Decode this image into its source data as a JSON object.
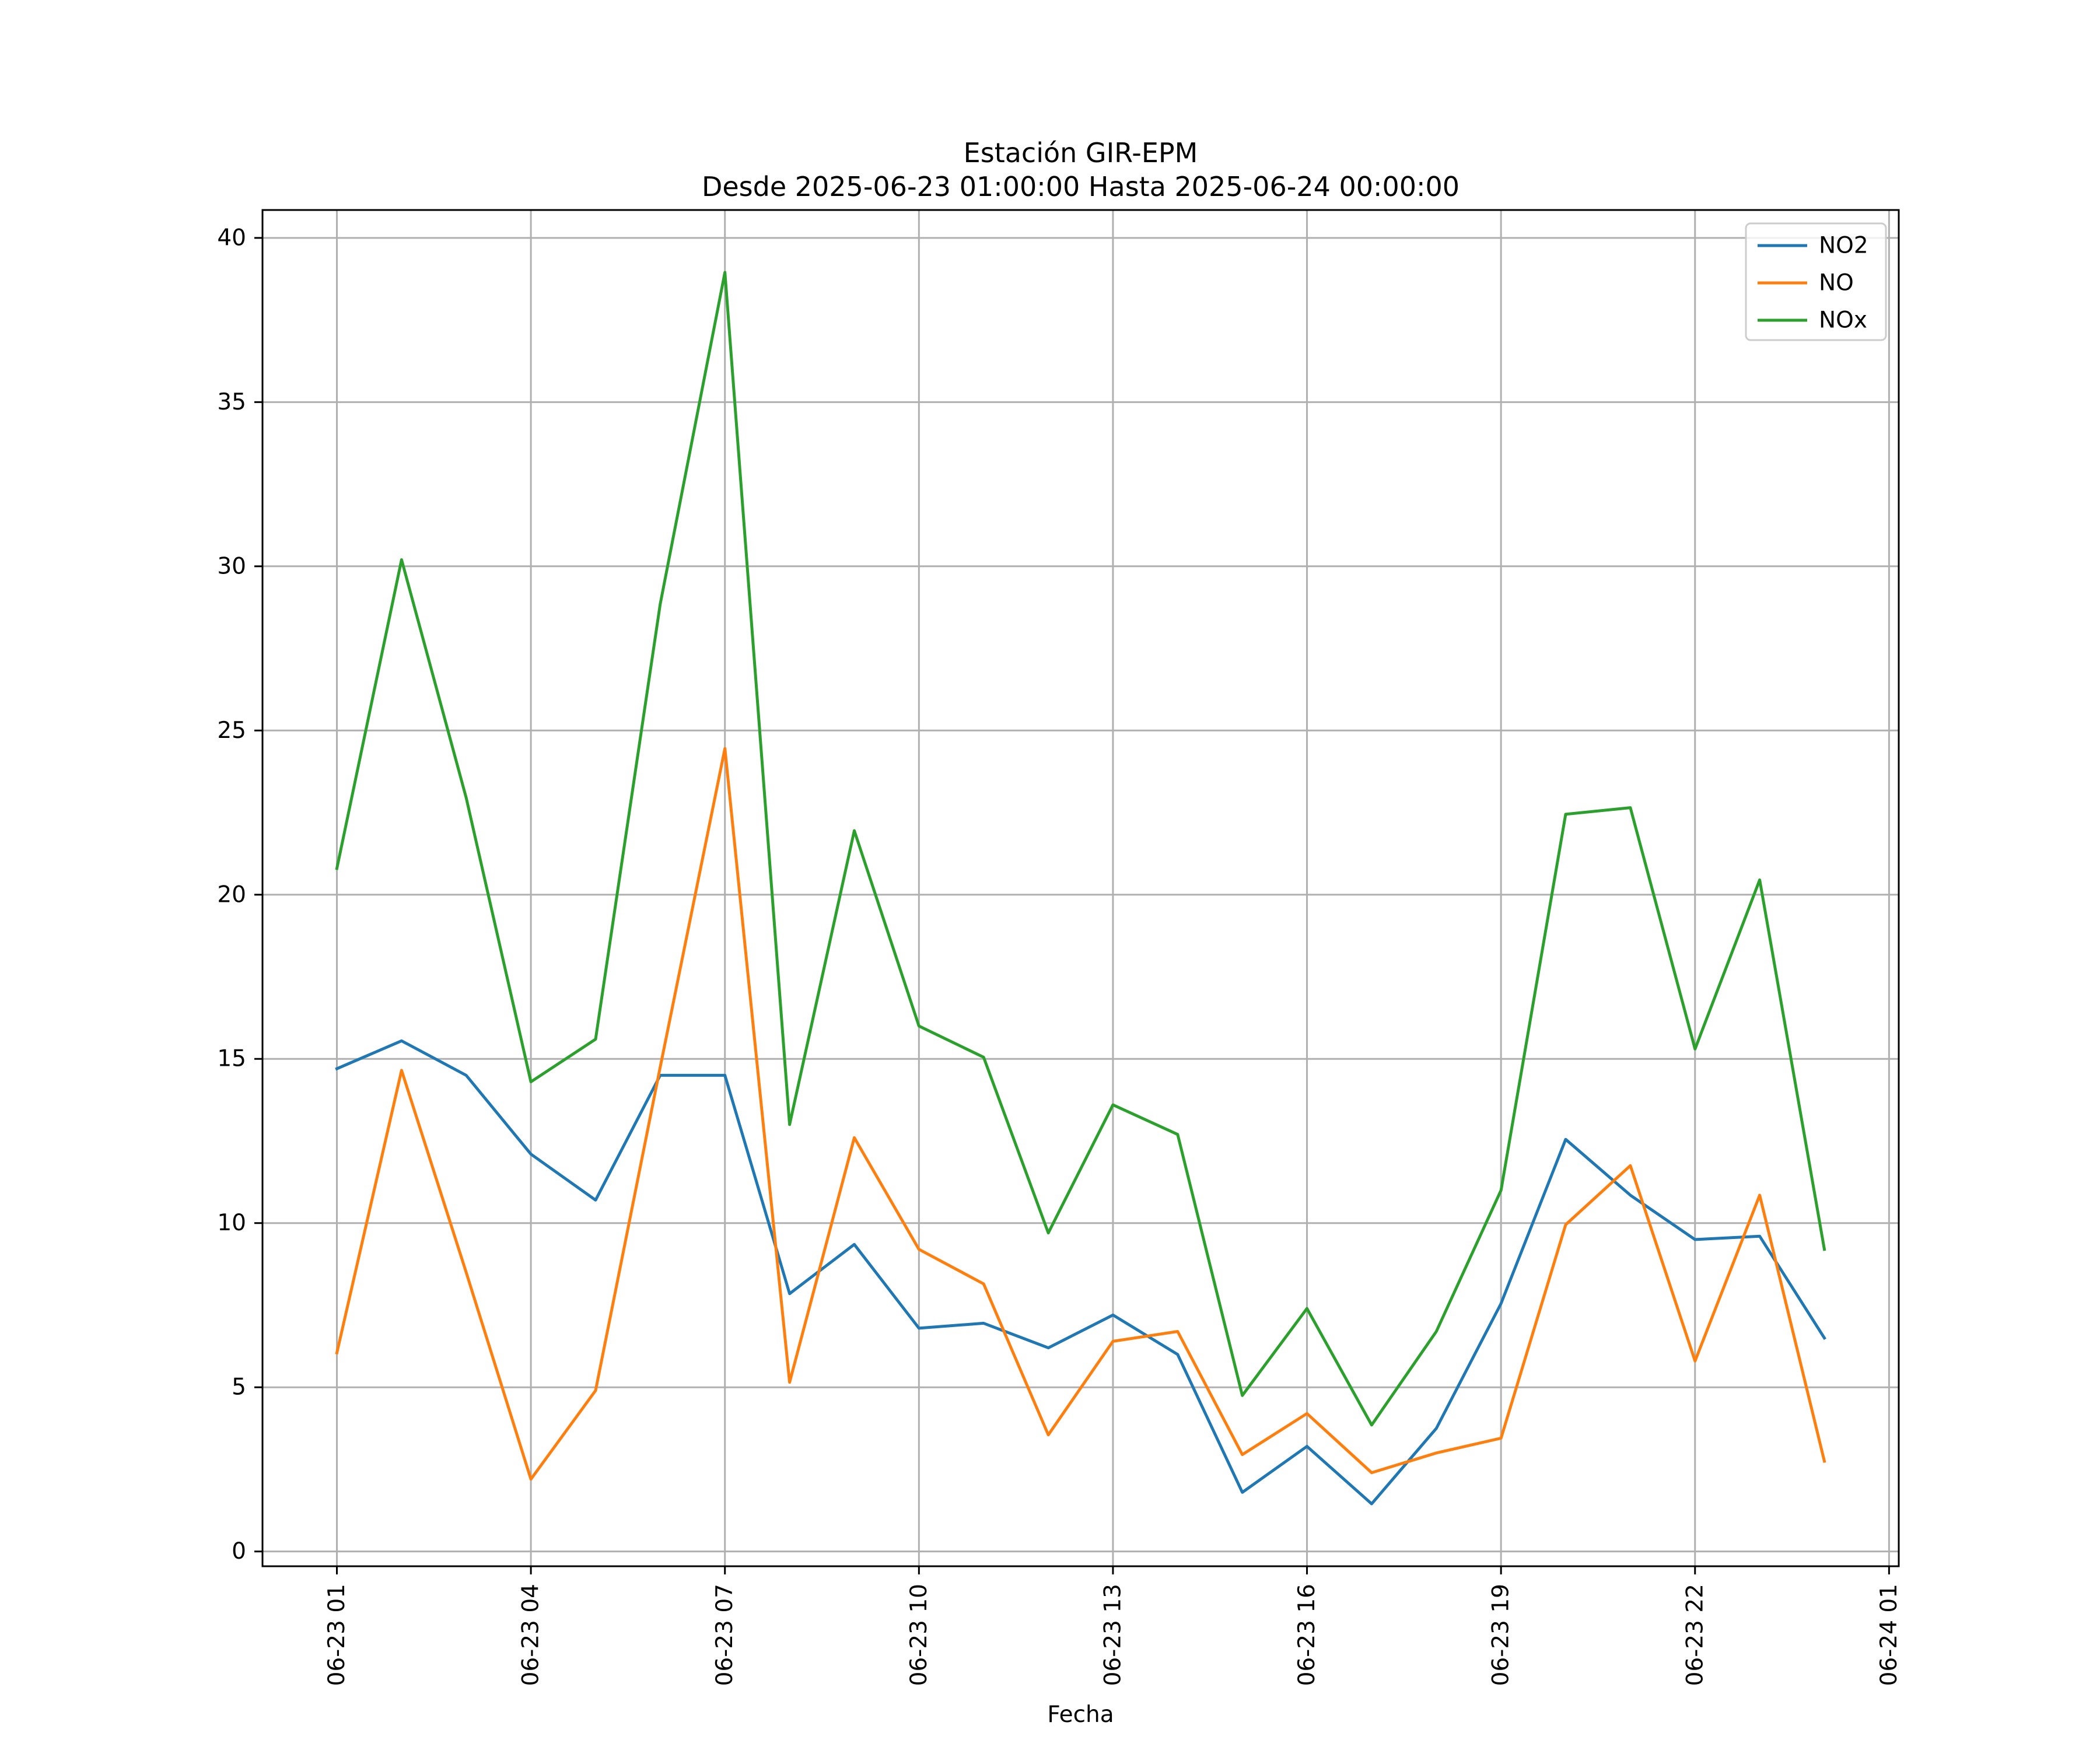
{
  "chart_data": {
    "type": "line",
    "title": "Estación GIR-EPM",
    "subtitle": "Desde 2025-06-23 01:00:00 Hasta 2025-06-24 00:00:00",
    "xlabel": "Fecha",
    "ylabel": "",
    "x": [
      "2025-06-23 01:00",
      "2025-06-23 02:00",
      "2025-06-23 03:00",
      "2025-06-23 04:00",
      "2025-06-23 05:00",
      "2025-06-23 06:00",
      "2025-06-23 07:00",
      "2025-06-23 08:00",
      "2025-06-23 09:00",
      "2025-06-23 10:00",
      "2025-06-23 11:00",
      "2025-06-23 12:00",
      "2025-06-23 13:00",
      "2025-06-23 14:00",
      "2025-06-23 15:00",
      "2025-06-23 16:00",
      "2025-06-23 17:00",
      "2025-06-23 18:00",
      "2025-06-23 19:00",
      "2025-06-23 20:00",
      "2025-06-23 21:00",
      "2025-06-23 22:00",
      "2025-06-23 23:00",
      "2025-06-24 00:00"
    ],
    "series": [
      {
        "name": "NO2",
        "color": "#1f77b4",
        "values": [
          14.7,
          15.55,
          14.5,
          12.1,
          10.7,
          14.5,
          14.5,
          7.85,
          9.35,
          6.8,
          6.95,
          6.2,
          7.2,
          6.0,
          1.8,
          3.2,
          1.45,
          3.75,
          7.55,
          12.55,
          10.85,
          9.5,
          9.6,
          6.5
        ]
      },
      {
        "name": "NO",
        "color": "#ff7f0e",
        "values": [
          6.05,
          14.65,
          8.5,
          2.2,
          4.9,
          14.75,
          24.45,
          5.15,
          12.6,
          9.2,
          8.15,
          3.55,
          6.4,
          6.7,
          2.95,
          4.2,
          2.4,
          3.0,
          3.45,
          9.95,
          11.75,
          5.8,
          10.85,
          2.75
        ]
      },
      {
        "name": "NOx",
        "color": "#2ca02c",
        "values": [
          20.8,
          30.2,
          22.95,
          14.3,
          15.6,
          28.85,
          38.95,
          13.0,
          21.95,
          16.0,
          15.05,
          9.7,
          13.6,
          12.7,
          4.75,
          7.4,
          3.85,
          6.7,
          11.0,
          22.45,
          22.65,
          15.3,
          20.45,
          9.2
        ]
      }
    ],
    "xticks": [
      "06-23 01",
      "06-23 04",
      "06-23 07",
      "06-23 10",
      "06-23 13",
      "06-23 16",
      "06-23 19",
      "06-23 22",
      "06-24 01"
    ],
    "yticks": [
      "0",
      "5",
      "10",
      "15",
      "20",
      "25",
      "30",
      "35",
      "40"
    ],
    "xlim": [
      "2025-06-22 23:51",
      "2025-06-24 01:09"
    ],
    "ylim": [
      -0.45,
      40.85
    ],
    "grid": true,
    "legend": "top-right"
  }
}
